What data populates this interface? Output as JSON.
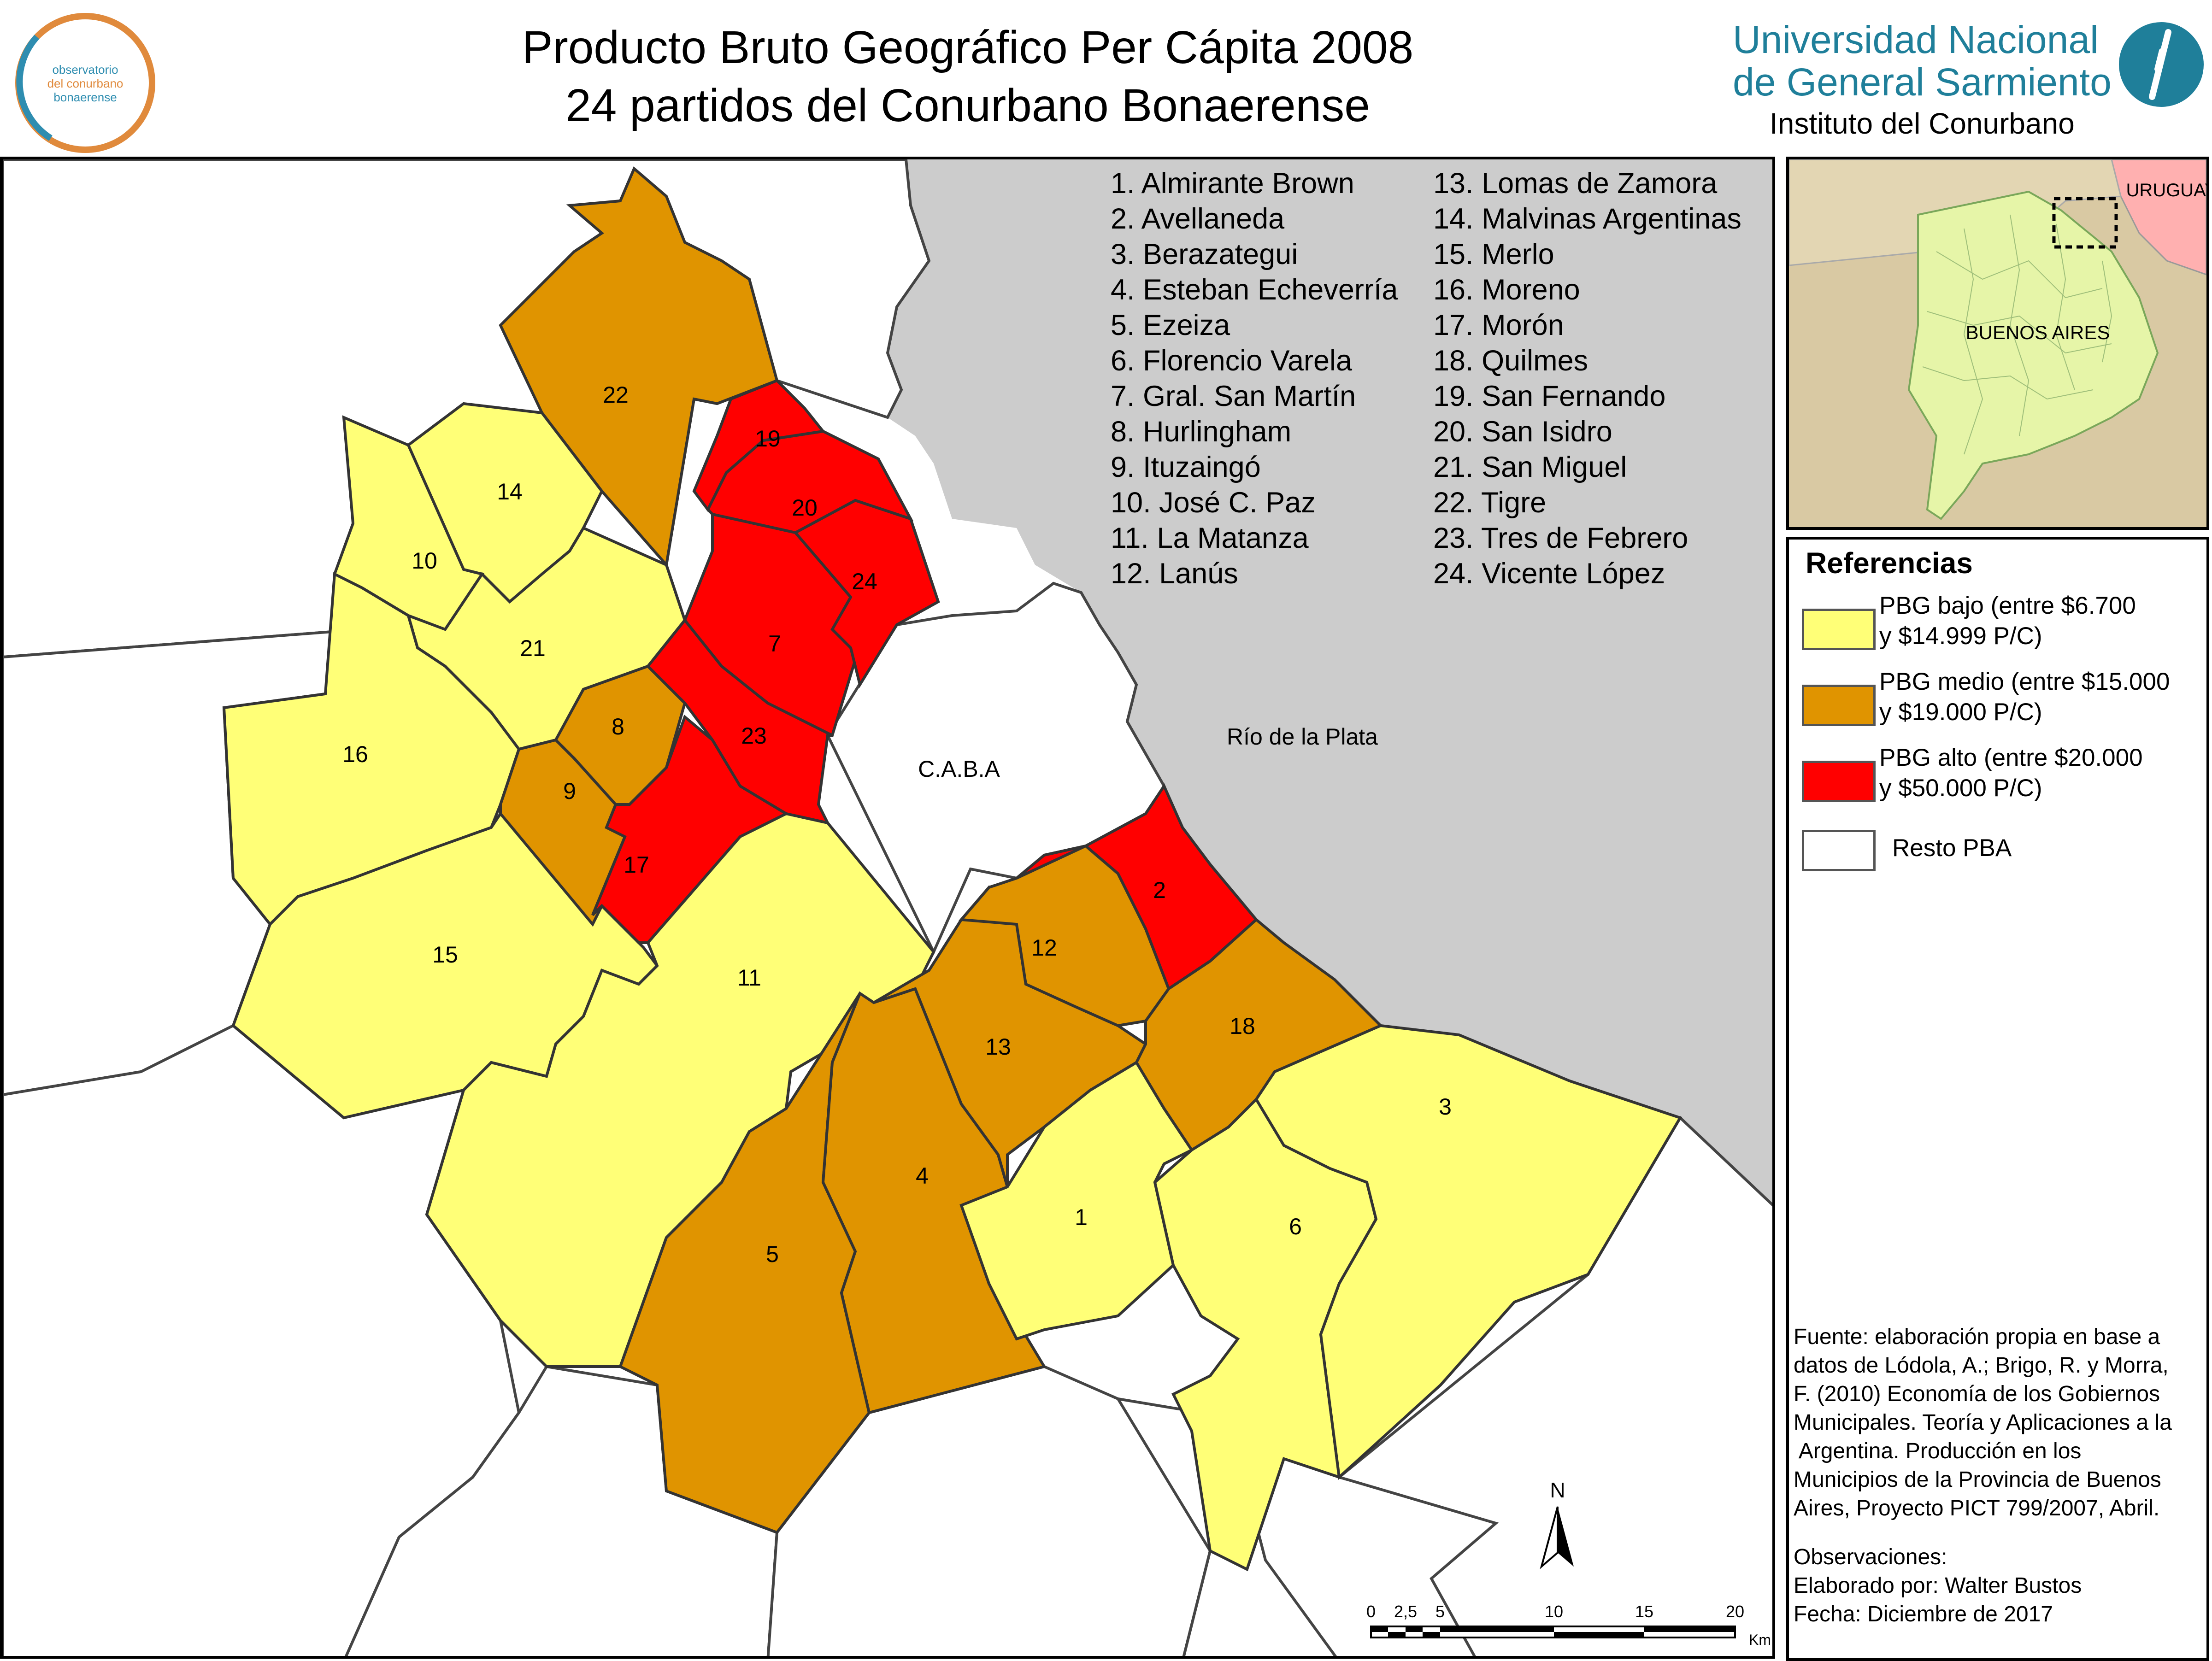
{
  "title": {
    "line1": "Producto Bruto Geográfico Per Cápita 2008",
    "line2": "24 partidos del Conurbano Bonaerense"
  },
  "logos": {
    "ocb": [
      "observatorio",
      "del conurbano",
      "bonaerense"
    ],
    "unsg_line1": "Universidad Nacional",
    "unsg_line2": "de General Sarmiento",
    "unsg_line3": "Instituto del Conurbano"
  },
  "colors": {
    "bajo": "#ffff77",
    "medio": "#e09400",
    "alto": "#ff0000",
    "resto": "#ffffff",
    "water": "#cccccc"
  },
  "municipalities": {
    "col1": [
      "1. Almirante Brown",
      "2. Avellaneda",
      "3. Berazategui",
      "4. Esteban Echeverría",
      "5. Ezeiza",
      "6. Florencio Varela",
      "7. Gral. San Martín",
      "8. Hurlingham",
      "9. Ituzaingó",
      "10. José C. Paz",
      "11. La Matanza",
      "12. Lanús"
    ],
    "col2": [
      "13. Lomas de Zamora",
      "14. Malvinas Argentinas",
      "15. Merlo",
      "16. Moreno",
      "17. Morón",
      "18. Quilmes",
      "19. San Fernando",
      "20. San Isidro",
      "21. San Miguel",
      "22. Tigre",
      "23. Tres de Febrero",
      "24. Vicente López"
    ]
  },
  "map_labels": {
    "caba": "C.A.B.A",
    "rio": "Río de la Plata",
    "numbers": [
      "1",
      "2",
      "3",
      "4",
      "5",
      "6",
      "7",
      "8",
      "9",
      "10",
      "11",
      "12",
      "13",
      "14",
      "15",
      "16",
      "17",
      "18",
      "19",
      "20",
      "21",
      "22",
      "23",
      "24"
    ]
  },
  "pbg_classes": {
    "bajo": [
      1,
      3,
      6,
      10,
      11,
      14,
      15,
      16,
      21
    ],
    "medio": [
      4,
      5,
      8,
      9,
      12,
      13,
      18,
      22
    ],
    "alto": [
      2,
      7,
      17,
      19,
      20,
      23,
      24
    ]
  },
  "inset": {
    "country_label": "URUGUAY",
    "province_label": "BUENOS AIRES"
  },
  "legend": {
    "title": "Referencias",
    "items": [
      {
        "key": "bajo",
        "lines": [
          "PBG bajo (entre $6.700",
          "y $14.999 P/C)"
        ]
      },
      {
        "key": "medio",
        "lines": [
          "PBG medio (entre $15.000",
          "y $19.000 P/C)"
        ]
      },
      {
        "key": "alto",
        "lines": [
          "PBG alto (entre $20.000",
          "y $50.000 P/C)"
        ]
      },
      {
        "key": "resto",
        "lines": [
          "Resto PBA"
        ]
      }
    ]
  },
  "source_note": {
    "lines": [
      "Fuente: elaboración propia en base a",
      "datos de Lódola, A.; Brigo, R. y Morra,",
      "F. (2010) Economía de los Gobiernos",
      "Municipales. Teoría y Aplicaciones a la",
      " Argentina. Producción en los",
      "Municipios de la Provincia de Buenos",
      "Aires, Proyecto PICT 799/2007, Abril."
    ],
    "obs_title": "Observaciones:",
    "author": "Elaborado por: Walter Bustos",
    "date": "Fecha: Diciembre de 2017"
  },
  "scale": {
    "ticks": [
      "0",
      "2,5",
      "5",
      "10",
      "15",
      "20"
    ],
    "unit": "Km"
  },
  "north": "N"
}
